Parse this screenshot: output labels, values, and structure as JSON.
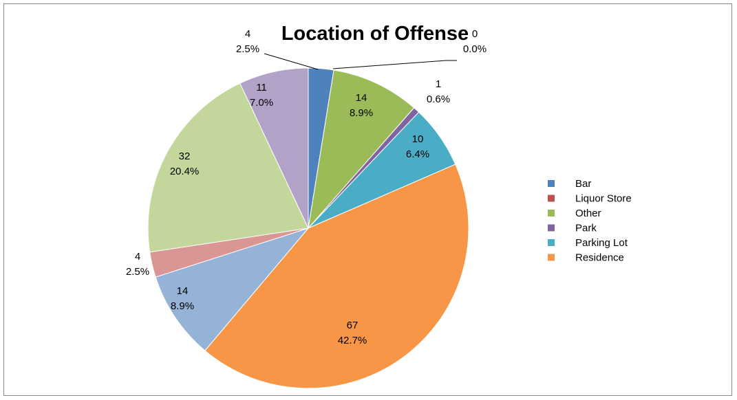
{
  "chart_data": {
    "type": "pie",
    "title": "Location of Offense",
    "categories": [
      "Bar",
      "Liquor Store",
      "Other",
      "Park",
      "Parking Lot",
      "Residence",
      null,
      null,
      null,
      null
    ],
    "values": [
      4,
      0,
      14,
      1,
      10,
      67,
      14,
      4,
      32,
      11
    ],
    "percent_labels": [
      "2.5%",
      "0.0%",
      "8.9%",
      "0.6%",
      "6.4%",
      "42.7%",
      "8.9%",
      "2.5%",
      "20.4%",
      "7.0%"
    ],
    "colors": [
      "#4f81bd",
      "#c0504d",
      "#9bbb59",
      "#8064a2",
      "#4bacc6",
      "#f79646",
      "#95b3d7",
      "#d99694",
      "#c3d69b",
      "#b2a2c7"
    ],
    "legend": "right"
  }
}
